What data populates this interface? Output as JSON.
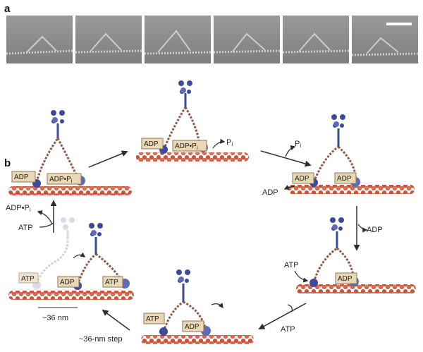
{
  "panels": {
    "a_label": "a",
    "b_label": "b"
  },
  "em_strip": {
    "frame_count": 6,
    "background_color": "#8d8d8d",
    "scale_bar_color": "#ffffff"
  },
  "colors": {
    "actin": "#c8553d",
    "actin_light": "#e7866c",
    "myosin": "#3c4a9a",
    "myosin_head": "#5f6ab8",
    "lever_arm": "#8c5a4a",
    "label_box": "#ead8b4",
    "label_border": "#8a7a5a",
    "arrow": "#2b2b3a",
    "faded": "#b7bbd8"
  },
  "states": {
    "s1": {
      "left_box": "ADP",
      "right_box": "ADP•P",
      "right_sub": "i"
    },
    "s2": {
      "left_box": "ADP",
      "right_box": "ADP•P",
      "right_sub": "i",
      "release": "P",
      "release_sub": "i"
    },
    "s3": {
      "left_box": "ADP",
      "right_box": "ADP",
      "release": "P",
      "release_sub": "i",
      "released_adp": "ADP"
    },
    "s4": {
      "label": "ADP"
    },
    "s5": {
      "atp": "ATP",
      "right_box": "ADP"
    },
    "s6": {
      "left_box": "ATP",
      "right_box": "ADP",
      "incoming_atp": "ATP"
    },
    "s7": {
      "faded_box": "ATP",
      "left_box": "ADP",
      "right_box": "ATP"
    }
  },
  "cycle": {
    "adp_pi": "ADP•P",
    "adp_pi_sub": "i",
    "atp": "ATP",
    "step_label": "~36-nm step",
    "scale_label": "~36 nm"
  }
}
